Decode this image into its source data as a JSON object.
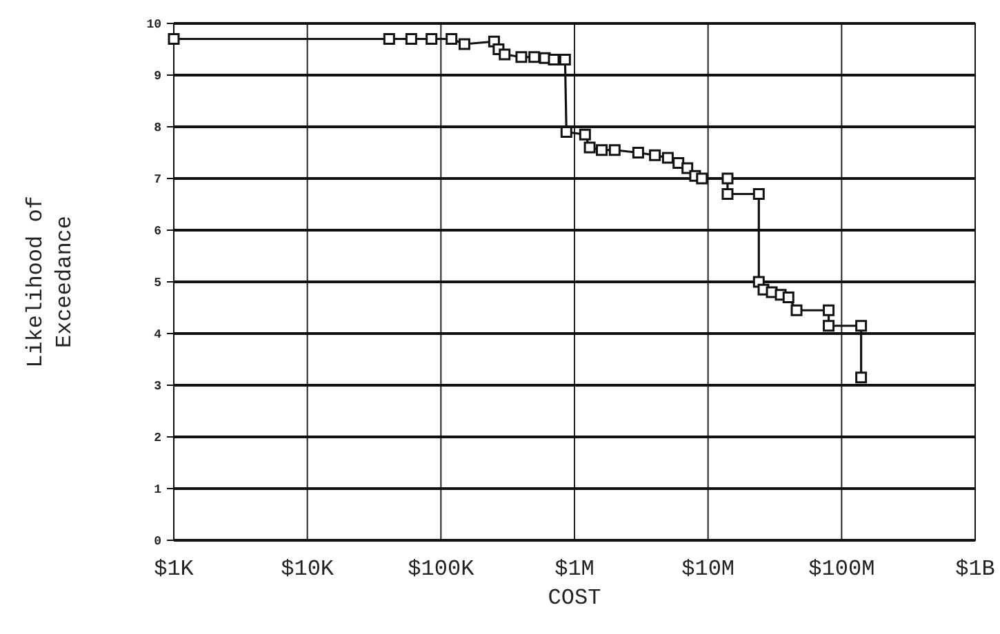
{
  "chart_data": {
    "type": "line",
    "xlabel": "COST",
    "ylabel": "Likelihood of Exceedance",
    "log": "x",
    "grid": true,
    "marker": "square",
    "line_style": "solid",
    "xlim": [
      1000,
      1000000000
    ],
    "xticks": [
      {
        "value": 1000,
        "label": "$1K"
      },
      {
        "value": 10000,
        "label": "$10K"
      },
      {
        "value": 100000,
        "label": "$100K"
      },
      {
        "value": 1000000,
        "label": "$1M"
      },
      {
        "value": 10000000,
        "label": "$10M"
      },
      {
        "value": 100000000,
        "label": "$100M"
      },
      {
        "value": 1000000000,
        "label": "$1B"
      }
    ],
    "ylim": [
      0,
      10
    ],
    "yticks": [
      0,
      1,
      2,
      3,
      4,
      5,
      6,
      7,
      8,
      9,
      10
    ],
    "series": [
      {
        "color": "#111111",
        "x": [
          1000,
          41000,
          60000,
          85000,
          120000,
          150000,
          250000,
          270000,
          300000,
          400000,
          500000,
          600000,
          700000,
          850000,
          870000,
          1200000,
          1300000,
          1600000,
          2000000,
          3000000,
          4000000,
          5000000,
          6000000,
          7000000,
          8000000,
          9000000,
          14000000,
          14000000,
          24000000,
          24000000,
          26000000,
          30000000,
          35000000,
          40000000,
          46000000,
          80000000,
          80000000,
          140000000,
          140000000
        ],
        "values": [
          9.7,
          9.7,
          9.7,
          9.7,
          9.7,
          9.6,
          9.65,
          9.5,
          9.4,
          9.35,
          9.35,
          9.33,
          9.3,
          9.3,
          7.9,
          7.85,
          7.6,
          7.55,
          7.55,
          7.5,
          7.45,
          7.4,
          7.3,
          7.2,
          7.05,
          7.0,
          7.0,
          6.7,
          6.7,
          5.0,
          4.85,
          4.8,
          4.75,
          4.7,
          4.45,
          4.45,
          4.15,
          4.15,
          3.15
        ]
      }
    ]
  }
}
